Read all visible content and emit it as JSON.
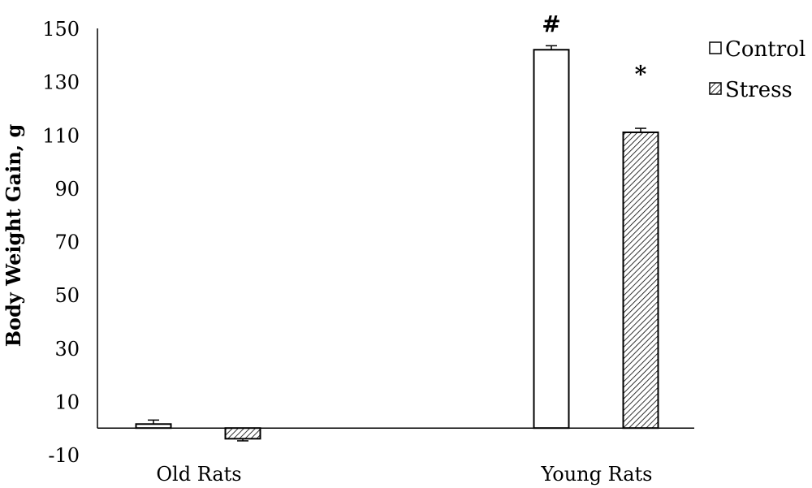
{
  "chart_data": {
    "type": "bar",
    "categories": [
      "Old Rats",
      "Young Rats"
    ],
    "series": [
      {
        "name": "Control",
        "values": [
          1.5,
          142
        ],
        "errors": [
          1.5,
          1.5
        ],
        "pattern": "none",
        "fill": "#ffffff"
      },
      {
        "name": "Stress",
        "values": [
          -4,
          111
        ],
        "errors": [
          0.8,
          1.5
        ],
        "pattern": "diagonal-hatch",
        "fill": "#ffffff"
      }
    ],
    "ylabel": "Body Weight Gain, g",
    "xlabel": "",
    "ylim": [
      -10,
      150
    ],
    "yticks": [
      150,
      130,
      110,
      90,
      70,
      50,
      30,
      10,
      -10
    ],
    "ytick_labels": [
      "150",
      "130",
      "110",
      "90",
      "70",
      "50",
      "30",
      "10",
      "-10"
    ],
    "grid": false,
    "legend_position": "top-right",
    "annotations": [
      {
        "text": "#",
        "category": "Young Rats",
        "series": "Control"
      },
      {
        "text": "*",
        "category": "Young Rats",
        "series": "Stress"
      }
    ]
  }
}
